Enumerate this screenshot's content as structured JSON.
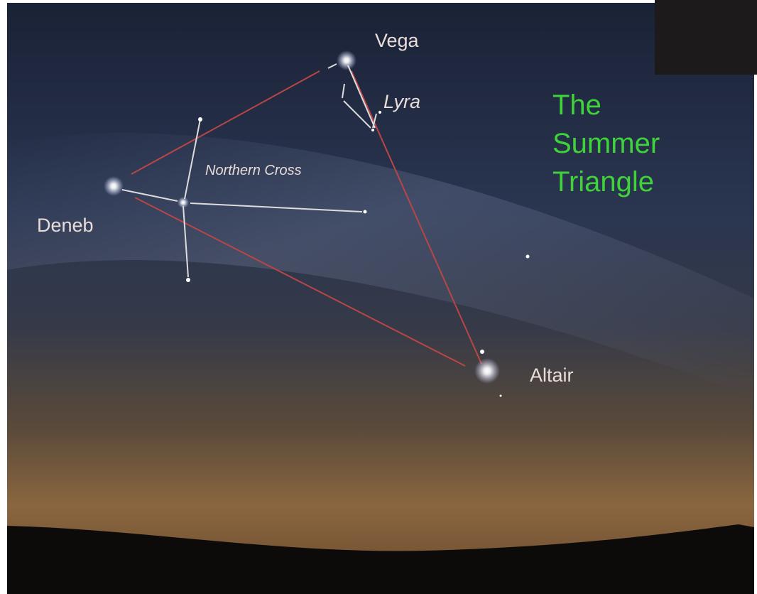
{
  "stars": {
    "vega": "Vega",
    "lyra": "Lyra",
    "northern_cross": "Northern Cross",
    "deneb": "Deneb",
    "altair": "Altair"
  },
  "title": {
    "lines": [
      "The",
      "Summer",
      "Triangle"
    ]
  }
}
